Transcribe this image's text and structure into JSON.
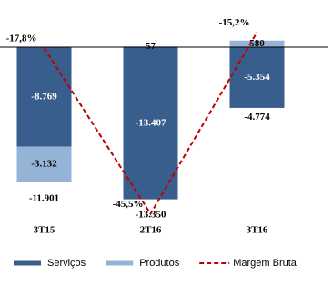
{
  "chart_data": {
    "type": "bar",
    "stacked": true,
    "categories": [
      "3T15",
      "2T16",
      "3T16"
    ],
    "series": [
      {
        "name": "Serviços",
        "color": "#375e8c",
        "values": [
          -8769,
          -13407,
          -5354
        ],
        "value_labels": [
          "-8.769",
          "-13.407",
          "-5.354"
        ]
      },
      {
        "name": "Produtos",
        "color": "#95b3d7",
        "values": [
          -3132,
          57,
          580
        ],
        "value_labels": [
          "-3.132",
          "57",
          "580"
        ]
      },
      {
        "name": "Margem Bruta",
        "type": "line",
        "axis": "y2",
        "color": "#c00000",
        "dashed": true,
        "values": [
          -17.8,
          -45.5,
          -15.2
        ],
        "value_labels": [
          "-17,8%",
          "-45,5%",
          "-15,2%"
        ]
      }
    ],
    "totals": {
      "values": [
        -11901,
        -13350,
        -4774
      ],
      "value_labels": [
        "-11.901",
        "-13.350",
        "-4.774"
      ]
    },
    "ylim": [
      -16000,
      3000
    ],
    "y2lim": [
      -48,
      -12
    ],
    "legend": "bottom"
  }
}
